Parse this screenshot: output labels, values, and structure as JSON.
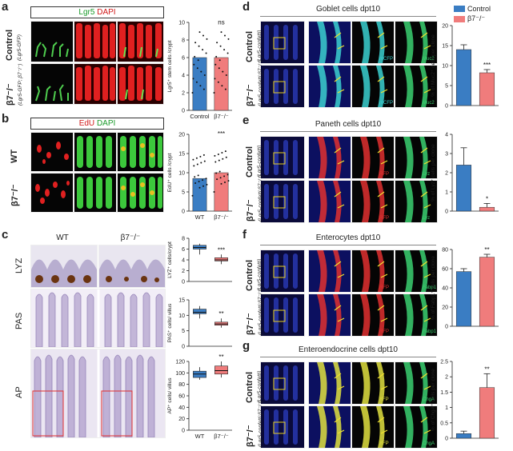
{
  "panel_letters": {
    "a": "a",
    "b": "b",
    "c": "c",
    "d": "d",
    "e": "e",
    "f": "f",
    "g": "g"
  },
  "a": {
    "header_green": "Lgr5",
    "header_red": "DAPI",
    "row1": "Control",
    "row1_sub": "(Lgr5-GFP)",
    "row2": "β7⁻/⁻",
    "row2_sub": "(Lgr5-GFP; β7⁻/⁻)"
  },
  "b": {
    "header_red": "EdU",
    "header_green": "DAPI",
    "row1": "WT",
    "row2": "β7⁻/⁻"
  },
  "c": {
    "col1": "WT",
    "col2": "β7⁻/⁻",
    "row1": "LYZ",
    "row2": "PAS",
    "row3": "AP"
  },
  "d": {
    "title": "Goblet cells dpt10",
    "row1": "Control",
    "row1_sub": "(Lgr5-confetti)",
    "row2": "β7⁻/⁻",
    "row2_sub": "(Lgr5-confetti;β7⁻/⁻)",
    "ch1": "mCFP",
    "ch2": "Muc2"
  },
  "e": {
    "title": "Paneth cells dpt10",
    "row1": "Control",
    "row1_sub": "(Lgr5-confetti)",
    "row2": "β7⁻/⁻",
    "row2_sub": "(Lgr5-confetti;β7⁻/⁻)",
    "ch1": "RFP",
    "ch2": "Lyz"
  },
  "f": {
    "title": "Enterocytes dpt10",
    "row1": "Control",
    "row1_sub": "(Lgr5-confetti)",
    "row2": "β7⁻/⁻",
    "row2_sub": "(Lgr5-confetti;β7⁻/⁻)",
    "ch1": "RFP",
    "ch2": "Fabp1"
  },
  "g": {
    "title": "Enteroendocrine cells dpt10",
    "row1": "Control",
    "row1_sub": "(Lgr5-confetti)",
    "row2": "β7⁻/⁻",
    "row2_sub": "(Lgr5-confetti;β7⁻/⁻)",
    "ch1": "YFP",
    "ch2": "ChgA"
  },
  "legend": {
    "items": [
      "Control",
      "β7⁻/⁻"
    ],
    "colors": [
      "#3a7dc3",
      "#f07c7c"
    ]
  },
  "chart_data": [
    {
      "id": "a",
      "type": "bar",
      "categories": [
        "Control",
        "β7⁻/⁻"
      ],
      "values": [
        6,
        6
      ],
      "ylabel": "Lgr5⁺ stem cells /crypt",
      "ylim": [
        0,
        10
      ],
      "yticks": [
        0,
        2,
        4,
        6,
        8,
        10
      ],
      "annotations": [
        "ns"
      ],
      "colors": [
        "#3a7dc3",
        "#f07c7c"
      ]
    },
    {
      "id": "b",
      "type": "bar",
      "categories": [
        "WT",
        "β7⁻/⁻"
      ],
      "values": [
        8.5,
        10
      ],
      "ylabel": "EdU⁺ cells /crypt",
      "ylim": [
        0,
        20
      ],
      "yticks": [
        0,
        5,
        10,
        15,
        20
      ],
      "annotations": [
        "***"
      ],
      "colors": [
        "#3a7dc3",
        "#f07c7c"
      ]
    },
    {
      "id": "c1",
      "type": "box",
      "categories": [
        "WT",
        "β7⁻/⁻"
      ],
      "boxes": [
        [
          5,
          6,
          6.3,
          6.7,
          7
        ],
        [
          3.2,
          3.8,
          4,
          4.4,
          5
        ]
      ],
      "ylabel": "LYZ⁺ cells/crypt",
      "ylim": [
        0,
        8
      ],
      "yticks": [
        0,
        2,
        4,
        6,
        8
      ],
      "annotations": [
        "***"
      ],
      "colors": [
        "#3a7dc3",
        "#f07c7c"
      ]
    },
    {
      "id": "c2",
      "type": "box",
      "categories": [
        "WT",
        "β7⁻/⁻"
      ],
      "boxes": [
        [
          9,
          10.5,
          11,
          12,
          13
        ],
        [
          6,
          6.8,
          7.2,
          7.8,
          9
        ]
      ],
      "ylabel": "PAS⁺ cells/ villus",
      "ylim": [
        0,
        15
      ],
      "yticks": [
        0,
        5,
        10,
        15
      ],
      "annotations": [
        "**"
      ],
      "colors": [
        "#3a7dc3",
        "#f07c7c"
      ]
    },
    {
      "id": "c3",
      "type": "box",
      "categories": [
        "WT",
        "β7⁻/⁻"
      ],
      "boxes": [
        [
          88,
          92,
          98,
          103,
          110
        ],
        [
          92,
          98,
          104,
          112,
          120
        ]
      ],
      "ylabel": "AP⁺ cells/ villus",
      "ylim": [
        0,
        120
      ],
      "yticks": [
        0,
        20,
        40,
        60,
        80,
        100,
        120
      ],
      "annotations": [
        "**"
      ],
      "xlabels": [
        "WT",
        "β7⁻/⁻"
      ],
      "colors": [
        "#3a7dc3",
        "#f07c7c"
      ]
    },
    {
      "id": "d",
      "type": "bar",
      "categories": [
        "Control",
        "β7⁻/⁻"
      ],
      "values": [
        14,
        8.2
      ],
      "errors": [
        1.2,
        0.8
      ],
      "ylabel": "% of Muc2⁺ cells per clone",
      "ylim": [
        0,
        20
      ],
      "yticks": [
        0,
        5,
        10,
        15,
        20
      ],
      "annotations": [
        "***"
      ],
      "colors": [
        "#3a7dc3",
        "#f07c7c"
      ]
    },
    {
      "id": "e",
      "type": "bar",
      "categories": [
        "Control",
        "β7⁻/⁻"
      ],
      "values": [
        2.4,
        0.2
      ],
      "errors": [
        0.9,
        0.2
      ],
      "ylabel": "% of Lyz⁺ cells per clone",
      "ylim": [
        0,
        4
      ],
      "yticks": [
        0,
        1,
        2,
        3,
        4
      ],
      "annotations": [
        "*"
      ],
      "colors": [
        "#3a7dc3",
        "#f07c7c"
      ]
    },
    {
      "id": "f",
      "type": "bar",
      "categories": [
        "Control",
        "β7⁻/⁻"
      ],
      "values": [
        57,
        72
      ],
      "errors": [
        3,
        3
      ],
      "ylabel": "% of Fabp1⁺ cells per clone",
      "ylim": [
        0,
        80
      ],
      "yticks": [
        0,
        20,
        40,
        60,
        80
      ],
      "annotations": [
        "**"
      ],
      "colors": [
        "#3a7dc3",
        "#f07c7c"
      ]
    },
    {
      "id": "g",
      "type": "bar",
      "categories": [
        "Control",
        "β7⁻/⁻"
      ],
      "values": [
        0.15,
        1.65
      ],
      "errors": [
        0.08,
        0.45
      ],
      "ylabel": "% of ChgA⁺ cells per clone",
      "ylim": [
        0,
        2.5
      ],
      "yticks": [
        0,
        0.5,
        1.0,
        1.5,
        2.0,
        2.5
      ],
      "annotations": [
        "**"
      ],
      "colors": [
        "#3a7dc3",
        "#f07c7c"
      ]
    }
  ]
}
